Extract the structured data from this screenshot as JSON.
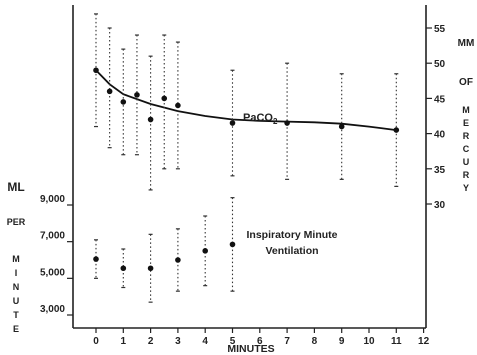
{
  "chart_data": {
    "type": "scatter",
    "xlabel": "MINUTES",
    "x_ticks": [
      0,
      1,
      2,
      3,
      4,
      5,
      6,
      7,
      8,
      9,
      10,
      11,
      12
    ],
    "left_axis": {
      "label_parts": [
        "ML",
        "PER",
        "M",
        "I",
        "N",
        "U",
        "T",
        "E"
      ],
      "ticks": [
        3000,
        5000,
        7000,
        9000
      ],
      "tick_labels": [
        "3,000",
        "5,000",
        "7,000",
        "9,000"
      ],
      "ylim": [
        2000,
        10000
      ]
    },
    "right_axis": {
      "label_parts": [
        "MM",
        "OF",
        "M",
        "E",
        "R",
        "C",
        "U",
        "R",
        "Y"
      ],
      "ticks": [
        30,
        35,
        40,
        45,
        50,
        55
      ],
      "ylim": [
        22,
        58
      ]
    },
    "series": [
      {
        "name": "PaCO2",
        "axis": "right",
        "curve": true,
        "points": [
          {
            "x": 0,
            "y": 49,
            "lo": 41,
            "hi": 57
          },
          {
            "x": 0.5,
            "y": 46,
            "lo": 38,
            "hi": 55
          },
          {
            "x": 1,
            "y": 44.5,
            "lo": 37,
            "hi": 52
          },
          {
            "x": 1.5,
            "y": 45.5,
            "lo": 37,
            "hi": 54
          },
          {
            "x": 2,
            "y": 42,
            "lo": 32,
            "hi": 51
          },
          {
            "x": 2.5,
            "y": 45,
            "lo": 35,
            "hi": 54
          },
          {
            "x": 3,
            "y": 44,
            "lo": 35,
            "hi": 53
          },
          {
            "x": 5,
            "y": 41.5,
            "lo": 34,
            "hi": 49
          },
          {
            "x": 7,
            "y": 41.5,
            "lo": 33.5,
            "hi": 50
          },
          {
            "x": 9,
            "y": 41,
            "lo": 33.5,
            "hi": 48.5
          },
          {
            "x": 11,
            "y": 40.5,
            "lo": 32.5,
            "hi": 48.5
          }
        ],
        "curve_points": [
          [
            0,
            49
          ],
          [
            0.5,
            47
          ],
          [
            1,
            45.6
          ],
          [
            2,
            44.2
          ],
          [
            3,
            43.2
          ],
          [
            4,
            42.5
          ],
          [
            5,
            42
          ],
          [
            6,
            41.8
          ],
          [
            7,
            41.7
          ],
          [
            8,
            41.6
          ],
          [
            9,
            41.4
          ],
          [
            10,
            41
          ],
          [
            11,
            40.5
          ]
        ],
        "label": "PaCO",
        "label_sub": "2"
      },
      {
        "name": "Inspiratory Minute Ventilation",
        "axis": "left",
        "curve": false,
        "points": [
          {
            "x": 0,
            "y": 6050,
            "lo": 5000,
            "hi": 7100
          },
          {
            "x": 1,
            "y": 5550,
            "lo": 4500,
            "hi": 6600
          },
          {
            "x": 2,
            "y": 5550,
            "lo": 3700,
            "hi": 7400
          },
          {
            "x": 3,
            "y": 6000,
            "lo": 4300,
            "hi": 7700
          },
          {
            "x": 4,
            "y": 6500,
            "lo": 4600,
            "hi": 8400
          },
          {
            "x": 5,
            "y": 6850,
            "lo": 4300,
            "hi": 9400
          }
        ],
        "label_lines": [
          "Inspiratory Minute",
          "Ventilation"
        ]
      }
    ]
  }
}
